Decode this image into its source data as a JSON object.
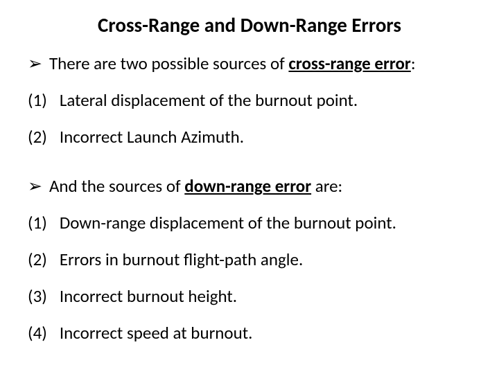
{
  "title": {
    "text": "Cross-Range and Down-Range Errors",
    "fontsize": 29,
    "fontweight": "bold"
  },
  "body_fontsize": 25,
  "arrow_glyph": "➢",
  "intro1": {
    "prefix": "There are two possible sources of ",
    "emph": "cross-range error",
    "suffix": ":"
  },
  "cross_items": [
    {
      "num": "(1)",
      "text": "Lateral displacement of the burnout point."
    },
    {
      "num": "(2)",
      "text": "Incorrect Launch Azimuth."
    }
  ],
  "intro2": {
    "prefix": "And the sources of ",
    "emph": "down-range error",
    "suffix": " are:"
  },
  "down_items": [
    {
      "num": "(1)",
      "text": "Down-range displacement of the burnout point."
    },
    {
      "num": "(2)",
      "text": "Errors in burnout flight-path angle."
    },
    {
      "num": "(3)",
      "text": "Incorrect burnout height."
    },
    {
      "num": "(4)",
      "text": "Incorrect speed at burnout."
    }
  ],
  "colors": {
    "background": "#ffffff",
    "text": "#000000"
  }
}
